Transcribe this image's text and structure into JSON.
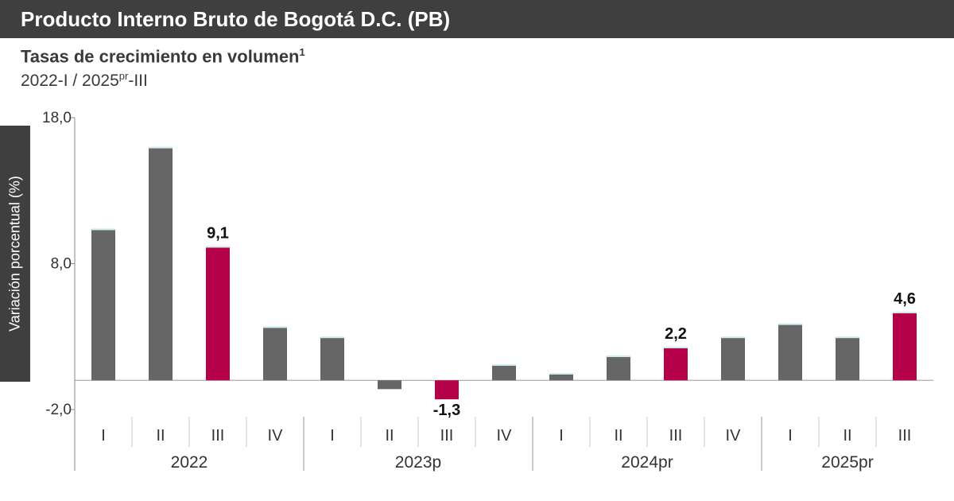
{
  "header": {
    "title": "Producto Interno Bruto de Bogotá D.C. (PB)",
    "subtitle_main": "Tasas de crecimiento en volumen",
    "subtitle_sup": "1",
    "period_start": "2022-I / 2025",
    "period_sup": "pr",
    "period_end": "-III"
  },
  "colors": {
    "normal": "#666666",
    "highlight": "#b5004a",
    "header_bg": "#3f3f3f"
  },
  "chart_data": {
    "type": "bar",
    "ylabel": "Variación porcentual (%)",
    "ylim": [
      -2.0,
      18.0
    ],
    "yticks": [
      18.0,
      8.0,
      -2.0
    ],
    "ytick_labels": [
      "18,0",
      "8,0",
      "-2,0"
    ],
    "grid": false,
    "legend": "none",
    "categories": [
      "I",
      "II",
      "III",
      "IV",
      "I",
      "II",
      "III",
      "IV",
      "I",
      "II",
      "III",
      "IV",
      "I",
      "II",
      "III"
    ],
    "years": [
      {
        "label": "2022",
        "count": 4
      },
      {
        "label": "2023p",
        "count": 4
      },
      {
        "label": "2024pr",
        "count": 4
      },
      {
        "label": "2025pr",
        "count": 3
      }
    ],
    "values": [
      10.3,
      15.9,
      9.1,
      3.6,
      2.9,
      -0.6,
      -1.3,
      1.0,
      0.4,
      1.6,
      2.2,
      2.9,
      3.8,
      2.9,
      4.6
    ],
    "highlight": [
      false,
      false,
      true,
      false,
      false,
      false,
      true,
      false,
      false,
      false,
      true,
      false,
      false,
      false,
      true
    ],
    "data_labels": [
      "",
      "",
      "9,1",
      "",
      "",
      "",
      "-1,3",
      "",
      "",
      "",
      "2,2",
      "",
      "",
      "",
      "4,6"
    ]
  }
}
